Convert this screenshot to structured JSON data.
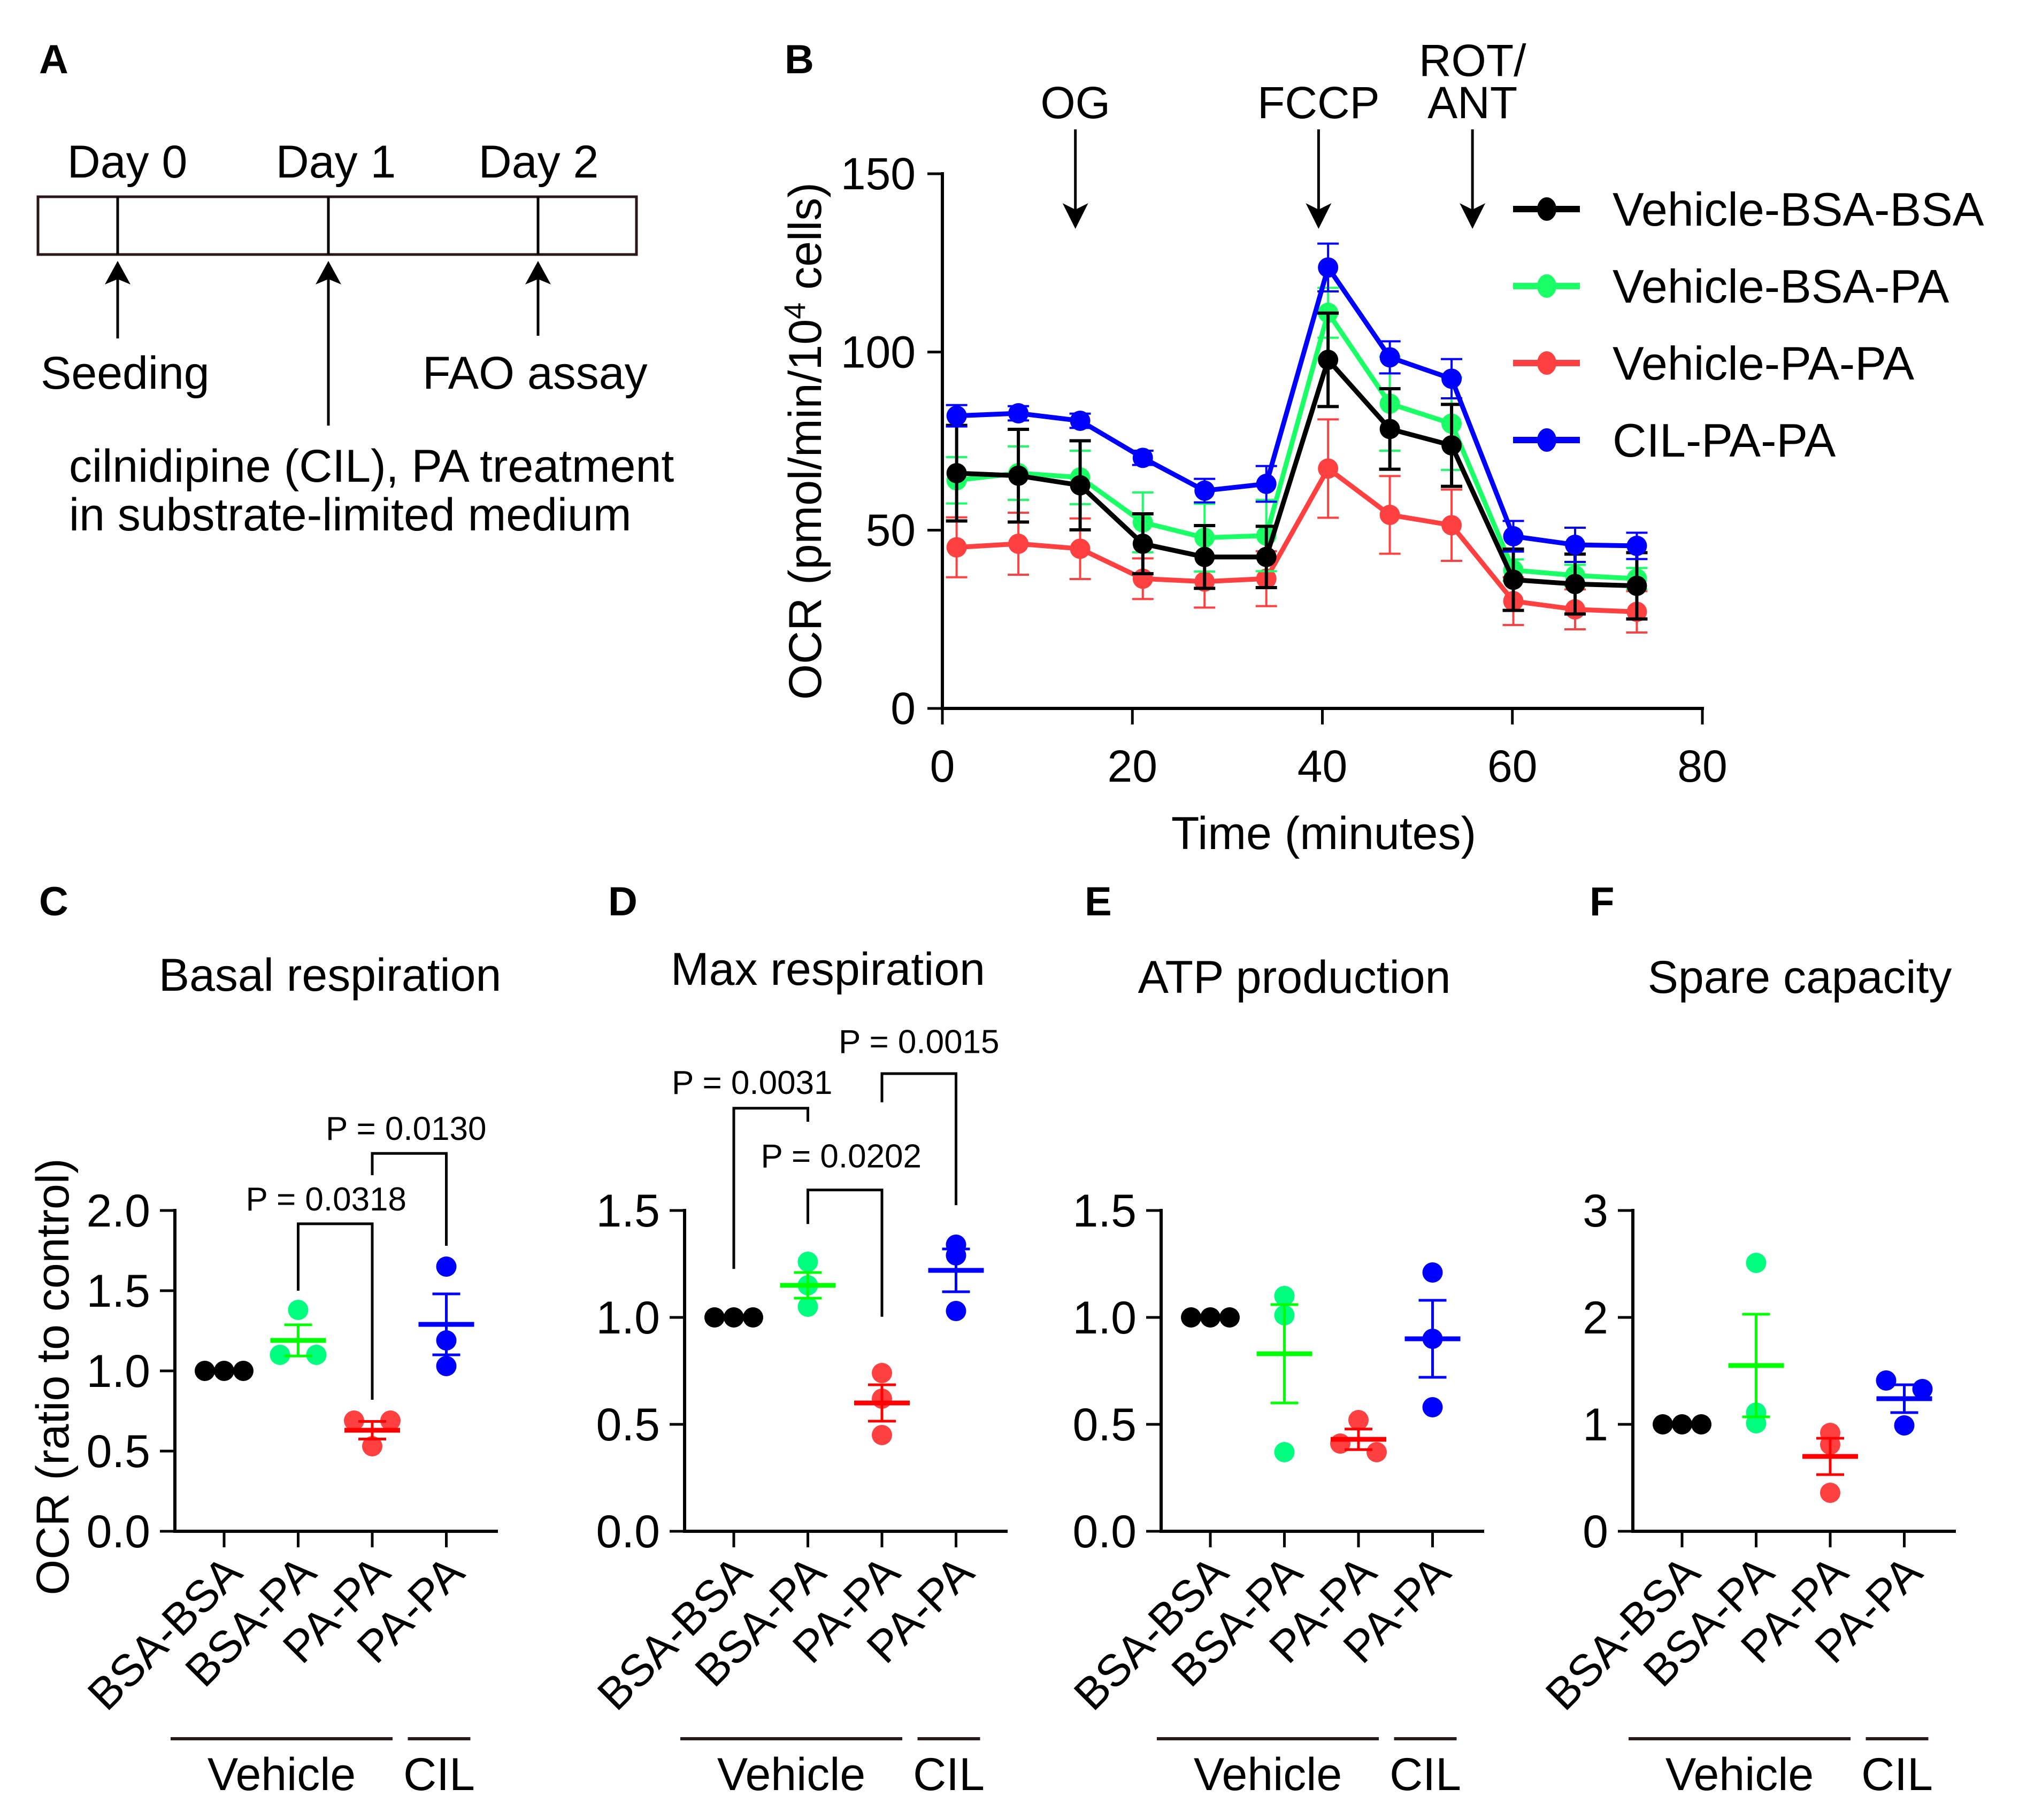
{
  "figure": {
    "panel_A": {
      "letter": "A",
      "days": [
        "Day 0",
        "Day 1",
        "Day 2"
      ],
      "events": [
        {
          "day": "Day 0",
          "lines": [
            "Seeding"
          ]
        },
        {
          "day": "Day 1",
          "lines": [
            "cilnidipine (CIL), PA treatment",
            "in substrate-limited medium"
          ]
        },
        {
          "day": "Day 2",
          "lines": [
            "FAO assay"
          ]
        }
      ]
    }
  },
  "chart_data": [
    {
      "panel": "B",
      "type": "line",
      "title": "",
      "xlabel": "Time (minutes)",
      "ylabel": {
        "full": "OCR (pmol/min/10⁴ cells)",
        "before": "OCR (pmol/min/10",
        "superscript": "4",
        "after": " cells)"
      },
      "xlim": [
        0,
        80
      ],
      "ylim": [
        0,
        150
      ],
      "xticks": [
        0,
        20,
        40,
        60,
        80
      ],
      "xtick_labels": [
        "0",
        "20",
        "40",
        "60",
        "80"
      ],
      "yticks": [
        0,
        50,
        100,
        150
      ],
      "ytick_labels": [
        "0",
        "50",
        "100",
        "150"
      ],
      "grid": false,
      "legend": "right",
      "x": [
        1.5,
        8.0,
        14.5,
        21.1,
        27.6,
        34.1,
        40.6,
        47.1,
        53.6,
        60.1,
        66.6,
        73.1
      ],
      "injections": [
        {
          "lines": [
            "OG"
          ],
          "time": 14.0
        },
        {
          "lines": [
            "FCCP"
          ],
          "time": 39.6
        },
        {
          "lines": [
            "ROT/",
            "ANT"
          ],
          "time": 55.8
        }
      ],
      "series": [
        {
          "name": "Vehicle-BSA-BSA",
          "color": "#000000",
          "values": [
            66.0,
            65.3,
            62.6,
            46.2,
            42.5,
            42.5,
            97.8,
            78.4,
            73.8,
            36.1,
            34.9,
            34.4
          ],
          "error": [
            13.4,
            13.0,
            12.5,
            8.4,
            8.8,
            8.6,
            13.1,
            11.3,
            11.5,
            8.6,
            8.4,
            9.3
          ]
        },
        {
          "name": "Vehicle-BSA-PA",
          "color": "#1AFF66",
          "values": [
            64.0,
            66.0,
            64.8,
            52.2,
            47.9,
            48.5,
            111.0,
            85.5,
            79.9,
            38.8,
            37.3,
            36.4
          ],
          "error": [
            6.5,
            7.5,
            7.5,
            8.4,
            9.5,
            10.0,
            7.0,
            13.2,
            13.0,
            3.0,
            3.0,
            3.0
          ]
        },
        {
          "name": "Vehicle-PA-PA",
          "color": "#FF4040",
          "values": [
            45.2,
            46.2,
            44.8,
            36.4,
            35.6,
            36.4,
            67.3,
            54.3,
            51.4,
            30.1,
            27.8,
            27.1
          ],
          "error": [
            8.4,
            8.7,
            8.5,
            5.7,
            7.3,
            7.7,
            13.8,
            10.9,
            10.0,
            6.7,
            5.6,
            5.8
          ]
        },
        {
          "name": "CIL-PA-PA",
          "color": "#0000FF",
          "values": [
            82.1,
            82.8,
            80.7,
            70.3,
            61.1,
            63.0,
            123.7,
            98.5,
            92.5,
            48.3,
            45.9,
            45.6
          ],
          "error": [
            3.0,
            2.0,
            2.0,
            2.0,
            3.3,
            5.0,
            6.7,
            4.5,
            5.5,
            4.3,
            4.8,
            3.7
          ]
        }
      ]
    },
    {
      "panel": "C",
      "type": "scatter",
      "title": "Basal respiration",
      "ylabel": "OCR (ratio to control)",
      "ylim": [
        0,
        2.0
      ],
      "yticks": [
        0,
        0.5,
        1.0,
        1.5,
        2.0
      ],
      "ytick_labels": [
        "0.0",
        "0.5",
        "1.0",
        "1.5",
        "2.0"
      ],
      "grid": false,
      "categories": [
        "BSA-BSA",
        "BSA-PA",
        "PA-PA",
        "PA-PA"
      ],
      "category_groups": [
        {
          "label": "Vehicle",
          "from": 0,
          "to": 2
        },
        {
          "label": "CIL",
          "from": 3,
          "to": 3
        }
      ],
      "groups": [
        {
          "name": "Vehicle-BSA-BSA",
          "dot_color": "#000000",
          "line_color": "#000000",
          "points": [
            1.0,
            1.0,
            1.0
          ],
          "mean": 1.0,
          "sem": 0.0
        },
        {
          "name": "Vehicle-BSA-PA",
          "dot_color": "#00FF7F",
          "line_color": "#00FF00",
          "points": [
            1.38,
            1.1,
            1.1
          ],
          "mean": 1.19,
          "sem": 0.097
        },
        {
          "name": "Vehicle-PA-PA",
          "dot_color": "#FF4040",
          "line_color": "#FF0000",
          "points": [
            0.69,
            0.69,
            0.53
          ],
          "mean": 0.63,
          "sem": 0.055
        },
        {
          "name": "CIL-PA-PA",
          "dot_color": "#0000FF",
          "line_color": "#0000FF",
          "points": [
            1.65,
            1.19,
            1.03
          ],
          "mean": 1.29,
          "sem": 0.19
        }
      ],
      "comparisons": [
        {
          "pair": [
            1,
            2
          ],
          "label": "P = 0.0318"
        },
        {
          "pair": [
            2,
            3
          ],
          "label": "P = 0.0130"
        }
      ]
    },
    {
      "panel": "D",
      "type": "scatter",
      "title": "Max respiration",
      "ylabel": "",
      "ylim": [
        0,
        1.5
      ],
      "yticks": [
        0,
        0.5,
        1.0,
        1.5
      ],
      "ytick_labels": [
        "0.0",
        "0.5",
        "1.0",
        "1.5"
      ],
      "grid": false,
      "categories": [
        "BSA-BSA",
        "BSA-PA",
        "PA-PA",
        "PA-PA"
      ],
      "category_groups": [
        {
          "label": "Vehicle",
          "from": 0,
          "to": 2
        },
        {
          "label": "CIL",
          "from": 3,
          "to": 3
        }
      ],
      "groups": [
        {
          "name": "Vehicle-BSA-BSA",
          "dot_color": "#000000",
          "line_color": "#000000",
          "points": [
            1.0,
            1.0,
            1.0
          ],
          "mean": 1.0,
          "sem": 0.0
        },
        {
          "name": "Vehicle-BSA-PA",
          "dot_color": "#00FF7F",
          "line_color": "#00FF00",
          "points": [
            1.26,
            1.15,
            1.05
          ],
          "mean": 1.15,
          "sem": 0.06
        },
        {
          "name": "Vehicle-PA-PA",
          "dot_color": "#FF4040",
          "line_color": "#FF0000",
          "points": [
            0.74,
            0.62,
            0.45
          ],
          "mean": 0.6,
          "sem": 0.085
        },
        {
          "name": "CIL-PA-PA",
          "dot_color": "#0000FF",
          "line_color": "#0000FF",
          "points": [
            1.34,
            1.29,
            1.03
          ],
          "mean": 1.22,
          "sem": 0.1
        }
      ],
      "comparisons": [
        {
          "pair": [
            0,
            1
          ],
          "label": "P = 0.0031"
        },
        {
          "pair": [
            1,
            2
          ],
          "label": "P = 0.0202"
        },
        {
          "pair": [
            2,
            3
          ],
          "label": "P = 0.0015"
        }
      ]
    },
    {
      "panel": "E",
      "type": "scatter",
      "title": "ATP production",
      "ylabel": "",
      "ylim": [
        0,
        1.5
      ],
      "yticks": [
        0,
        0.5,
        1.0,
        1.5
      ],
      "ytick_labels": [
        "0.0",
        "0.5",
        "1.0",
        "1.5"
      ],
      "grid": false,
      "categories": [
        "BSA-BSA",
        "BSA-PA",
        "PA-PA",
        "PA-PA"
      ],
      "category_groups": [
        {
          "label": "Vehicle",
          "from": 0,
          "to": 2
        },
        {
          "label": "CIL",
          "from": 3,
          "to": 3
        }
      ],
      "groups": [
        {
          "name": "Vehicle-BSA-BSA",
          "dot_color": "#000000",
          "line_color": "#000000",
          "points": [
            1.0,
            1.0,
            1.0
          ],
          "mean": 1.0,
          "sem": 0.0
        },
        {
          "name": "Vehicle-BSA-PA",
          "dot_color": "#00FF7F",
          "line_color": "#00FF00",
          "points": [
            1.1,
            1.01,
            0.37
          ],
          "mean": 0.83,
          "sem": 0.23
        },
        {
          "name": "Vehicle-PA-PA",
          "dot_color": "#FF4040",
          "line_color": "#FF0000",
          "points": [
            0.52,
            0.41,
            0.37
          ],
          "mean": 0.43,
          "sem": 0.048
        },
        {
          "name": "CIL-PA-PA",
          "dot_color": "#0000FF",
          "line_color": "#0000FF",
          "points": [
            1.21,
            0.9,
            0.58
          ],
          "mean": 0.9,
          "sem": 0.18
        }
      ],
      "comparisons": []
    },
    {
      "panel": "F",
      "type": "scatter",
      "title": "Spare capacity",
      "ylabel": "",
      "ylim": [
        0,
        3
      ],
      "yticks": [
        0,
        1,
        2,
        3
      ],
      "ytick_labels": [
        "0",
        "1",
        "2",
        "3"
      ],
      "grid": false,
      "categories": [
        "BSA-BSA",
        "BSA-PA",
        "PA-PA",
        "PA-PA"
      ],
      "category_groups": [
        {
          "label": "Vehicle",
          "from": 0,
          "to": 2
        },
        {
          "label": "CIL",
          "from": 3,
          "to": 3
        }
      ],
      "groups": [
        {
          "name": "Vehicle-BSA-BSA",
          "dot_color": "#000000",
          "line_color": "#000000",
          "points": [
            1.0,
            1.0,
            1.0
          ],
          "mean": 1.0,
          "sem": 0.0
        },
        {
          "name": "Vehicle-BSA-PA",
          "dot_color": "#00FF7F",
          "line_color": "#00FF00",
          "points": [
            2.51,
            1.11,
            1.01
          ],
          "mean": 1.55,
          "sem": 0.48
        },
        {
          "name": "Vehicle-PA-PA",
          "dot_color": "#FF4040",
          "line_color": "#FF0000",
          "points": [
            0.92,
            0.81,
            0.36
          ],
          "mean": 0.7,
          "sem": 0.17
        },
        {
          "name": "CIL-PA-PA",
          "dot_color": "#0000FF",
          "line_color": "#0000FF",
          "points": [
            1.41,
            1.33,
            0.99
          ],
          "mean": 1.24,
          "sem": 0.13
        }
      ],
      "comparisons": []
    }
  ]
}
